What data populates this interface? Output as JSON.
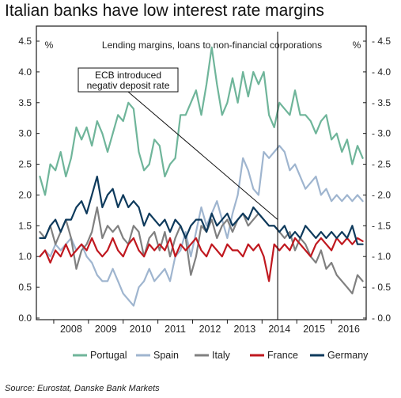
{
  "title": "Italian banks have low interest rate margins",
  "source": "Source: Eurostat, Danske Bank Markets",
  "chart_data": {
    "type": "line",
    "subtitle": "Lending margins, loans to non-financial corporations",
    "left_unit": "%",
    "right_unit": "%",
    "ylim": [
      0.0,
      4.5
    ],
    "yticks": [
      "0.0",
      "0.5",
      "1.0",
      "1.5",
      "2.0",
      "2.5",
      "3.0",
      "3.5",
      "4.0",
      "4.5"
    ],
    "right_yticks": [
      "0.0",
      "0.5",
      "1.0",
      "1.5",
      "2.0",
      "2.5",
      "3.0",
      "3.5",
      "4.0",
      "4.5"
    ],
    "xlim": [
      2007.5,
      2017.0
    ],
    "xticks": [
      "2008",
      "2009",
      "2010",
      "2011",
      "2012",
      "2013",
      "2014",
      "2015",
      "2016"
    ],
    "annotation": {
      "lines": [
        "ECB introduced",
        "negativ deposit rate"
      ],
      "x": 2014.45
    },
    "legend_position": "bottom",
    "series": [
      {
        "name": "Portugal",
        "color": "#6fb59a",
        "x": [
          2007.6,
          2007.75,
          2007.9,
          2008.05,
          2008.2,
          2008.35,
          2008.5,
          2008.65,
          2008.8,
          2008.95,
          2009.1,
          2009.25,
          2009.4,
          2009.55,
          2009.7,
          2009.85,
          2010.0,
          2010.15,
          2010.3,
          2010.45,
          2010.6,
          2010.75,
          2010.9,
          2011.05,
          2011.2,
          2011.35,
          2011.5,
          2011.65,
          2011.8,
          2011.95,
          2012.1,
          2012.25,
          2012.4,
          2012.55,
          2012.7,
          2012.85,
          2013.0,
          2013.15,
          2013.3,
          2013.45,
          2013.6,
          2013.75,
          2013.9,
          2014.05,
          2014.2,
          2014.35,
          2014.5,
          2014.65,
          2014.8,
          2014.95,
          2015.1,
          2015.25,
          2015.4,
          2015.55,
          2015.7,
          2015.85,
          2016.0,
          2016.15,
          2016.3,
          2016.45,
          2016.6,
          2016.75,
          2016.9
        ],
        "values": [
          2.3,
          2.0,
          2.5,
          2.4,
          2.7,
          2.3,
          2.6,
          3.1,
          2.9,
          3.1,
          2.8,
          3.2,
          3.0,
          2.7,
          3.0,
          3.3,
          3.2,
          3.5,
          3.4,
          2.7,
          2.4,
          2.5,
          2.9,
          2.8,
          2.3,
          2.5,
          2.6,
          3.3,
          3.3,
          3.5,
          3.7,
          3.3,
          3.8,
          4.4,
          3.8,
          3.3,
          3.5,
          3.9,
          3.5,
          4.0,
          3.6,
          4.0,
          3.8,
          4.0,
          3.3,
          3.1,
          3.5,
          3.4,
          3.3,
          3.7,
          3.3,
          3.3,
          3.2,
          3.0,
          3.2,
          3.3,
          2.9,
          3.0,
          2.7,
          2.9,
          2.5,
          2.8,
          2.6
        ]
      },
      {
        "name": "Spain",
        "color": "#9fb5cf",
        "x": [
          2007.6,
          2007.75,
          2007.9,
          2008.05,
          2008.2,
          2008.35,
          2008.5,
          2008.65,
          2008.8,
          2008.95,
          2009.1,
          2009.25,
          2009.4,
          2009.55,
          2009.7,
          2009.85,
          2010.0,
          2010.15,
          2010.3,
          2010.45,
          2010.6,
          2010.75,
          2010.9,
          2011.05,
          2011.2,
          2011.35,
          2011.5,
          2011.65,
          2011.8,
          2011.95,
          2012.1,
          2012.25,
          2012.4,
          2012.55,
          2012.7,
          2012.85,
          2013.0,
          2013.15,
          2013.3,
          2013.45,
          2013.6,
          2013.75,
          2013.9,
          2014.05,
          2014.2,
          2014.35,
          2014.5,
          2014.65,
          2014.8,
          2014.95,
          2015.1,
          2015.25,
          2015.4,
          2015.55,
          2015.7,
          2015.85,
          2016.0,
          2016.15,
          2016.3,
          2016.45,
          2016.6,
          2016.75,
          2016.9
        ],
        "values": [
          1.0,
          1.1,
          1.0,
          1.2,
          1.1,
          1.2,
          1.3,
          1.1,
          1.2,
          1.0,
          0.9,
          0.7,
          0.6,
          0.6,
          0.8,
          0.6,
          0.4,
          0.3,
          0.2,
          0.5,
          0.6,
          0.8,
          0.6,
          0.7,
          0.8,
          0.6,
          1.0,
          1.1,
          1.4,
          1.0,
          1.4,
          1.8,
          1.5,
          1.7,
          1.9,
          1.6,
          1.3,
          1.7,
          2.0,
          2.6,
          2.4,
          2.1,
          2.0,
          2.7,
          2.6,
          2.7,
          2.8,
          2.7,
          2.4,
          2.5,
          2.3,
          2.1,
          2.2,
          2.3,
          2.0,
          2.1,
          1.9,
          2.0,
          1.9,
          2.0,
          1.9,
          2.0,
          1.9
        ]
      },
      {
        "name": "Italy",
        "color": "#808080",
        "x": [
          2007.6,
          2007.75,
          2007.9,
          2008.05,
          2008.2,
          2008.35,
          2008.5,
          2008.65,
          2008.8,
          2008.95,
          2009.1,
          2009.25,
          2009.4,
          2009.55,
          2009.7,
          2009.85,
          2010.0,
          2010.15,
          2010.3,
          2010.45,
          2010.6,
          2010.75,
          2010.9,
          2011.05,
          2011.2,
          2011.35,
          2011.5,
          2011.65,
          2011.8,
          2011.95,
          2012.1,
          2012.25,
          2012.4,
          2012.55,
          2012.7,
          2012.85,
          2013.0,
          2013.15,
          2013.3,
          2013.45,
          2013.6,
          2013.75,
          2013.9,
          2014.05,
          2014.2,
          2014.35,
          2014.5,
          2014.65,
          2014.8,
          2014.95,
          2015.1,
          2015.25,
          2015.4,
          2015.55,
          2015.7,
          2015.85,
          2016.0,
          2016.15,
          2016.3,
          2016.45,
          2016.6,
          2016.75,
          2016.9
        ],
        "values": [
          1.4,
          1.3,
          1.5,
          1.2,
          1.4,
          1.6,
          1.3,
          0.8,
          1.1,
          1.2,
          1.4,
          1.8,
          1.3,
          1.5,
          1.4,
          1.5,
          1.3,
          1.2,
          1.5,
          1.4,
          1.0,
          1.3,
          1.4,
          1.1,
          1.4,
          1.0,
          1.3,
          1.5,
          1.3,
          0.7,
          1.0,
          1.5,
          1.4,
          1.6,
          1.3,
          1.5,
          1.6,
          1.4,
          1.6,
          1.7,
          1.5,
          1.6,
          1.7,
          1.6,
          1.5,
          1.5,
          1.4,
          1.3,
          1.4,
          1.1,
          1.3,
          1.2,
          1.0,
          0.9,
          1.1,
          0.8,
          0.9,
          0.7,
          0.6,
          0.5,
          0.4,
          0.7,
          0.6
        ]
      },
      {
        "name": "France",
        "color": "#c0181f",
        "x": [
          2007.6,
          2007.75,
          2007.9,
          2008.05,
          2008.2,
          2008.35,
          2008.5,
          2008.65,
          2008.8,
          2008.95,
          2009.1,
          2009.25,
          2009.4,
          2009.55,
          2009.7,
          2009.85,
          2010.0,
          2010.15,
          2010.3,
          2010.45,
          2010.6,
          2010.75,
          2010.9,
          2011.05,
          2011.2,
          2011.35,
          2011.5,
          2011.65,
          2011.8,
          2011.95,
          2012.1,
          2012.25,
          2012.4,
          2012.55,
          2012.7,
          2012.85,
          2013.0,
          2013.15,
          2013.3,
          2013.45,
          2013.6,
          2013.75,
          2013.9,
          2014.05,
          2014.2,
          2014.35,
          2014.5,
          2014.65,
          2014.8,
          2014.95,
          2015.1,
          2015.25,
          2015.4,
          2015.55,
          2015.7,
          2015.85,
          2016.0,
          2016.15,
          2016.3,
          2016.45,
          2016.6,
          2016.75,
          2016.9
        ],
        "values": [
          1.0,
          1.1,
          0.9,
          1.1,
          1.0,
          1.2,
          1.0,
          1.1,
          1.2,
          1.1,
          1.3,
          1.1,
          1.0,
          1.1,
          1.3,
          1.1,
          1.0,
          1.2,
          1.3,
          1.1,
          1.0,
          1.2,
          1.1,
          1.2,
          1.1,
          1.3,
          1.0,
          1.2,
          1.1,
          1.2,
          1.3,
          1.1,
          1.0,
          1.2,
          1.1,
          1.0,
          1.2,
          1.1,
          1.1,
          1.0,
          1.2,
          1.1,
          1.2,
          1.0,
          0.6,
          1.2,
          1.1,
          1.2,
          1.1,
          1.3,
          1.2,
          1.1,
          1.0,
          1.2,
          1.3,
          1.2,
          1.1,
          1.3,
          1.2,
          1.3,
          1.2,
          1.3,
          1.25
        ]
      },
      {
        "name": "Germany",
        "color": "#0e3a5c",
        "x": [
          2007.6,
          2007.75,
          2007.9,
          2008.05,
          2008.2,
          2008.35,
          2008.5,
          2008.65,
          2008.8,
          2008.95,
          2009.1,
          2009.25,
          2009.4,
          2009.55,
          2009.7,
          2009.85,
          2010.0,
          2010.15,
          2010.3,
          2010.45,
          2010.6,
          2010.75,
          2010.9,
          2011.05,
          2011.2,
          2011.35,
          2011.5,
          2011.65,
          2011.8,
          2011.95,
          2012.1,
          2012.25,
          2012.4,
          2012.55,
          2012.7,
          2012.85,
          2013.0,
          2013.15,
          2013.3,
          2013.45,
          2013.6,
          2013.75,
          2013.9,
          2014.05,
          2014.2,
          2014.35,
          2014.5,
          2014.65,
          2014.8,
          2014.95,
          2015.1,
          2015.25,
          2015.4,
          2015.55,
          2015.7,
          2015.85,
          2016.0,
          2016.15,
          2016.3,
          2016.45,
          2016.6,
          2016.75,
          2016.9
        ],
        "values": [
          1.3,
          1.3,
          1.5,
          1.6,
          1.4,
          1.6,
          1.6,
          1.8,
          1.9,
          1.7,
          2.0,
          2.3,
          1.8,
          2.0,
          2.1,
          1.8,
          2.0,
          1.8,
          1.9,
          1.8,
          1.5,
          1.7,
          1.6,
          1.5,
          1.6,
          1.4,
          1.6,
          1.5,
          1.3,
          1.5,
          1.6,
          1.6,
          1.4,
          1.7,
          1.5,
          1.6,
          1.7,
          1.5,
          1.6,
          1.7,
          1.6,
          1.8,
          1.7,
          1.6,
          1.5,
          1.5,
          1.4,
          1.5,
          1.3,
          1.4,
          1.3,
          1.5,
          1.4,
          1.3,
          1.4,
          1.3,
          1.4,
          1.3,
          1.4,
          1.3,
          1.5,
          1.2,
          1.2
        ]
      }
    ]
  }
}
